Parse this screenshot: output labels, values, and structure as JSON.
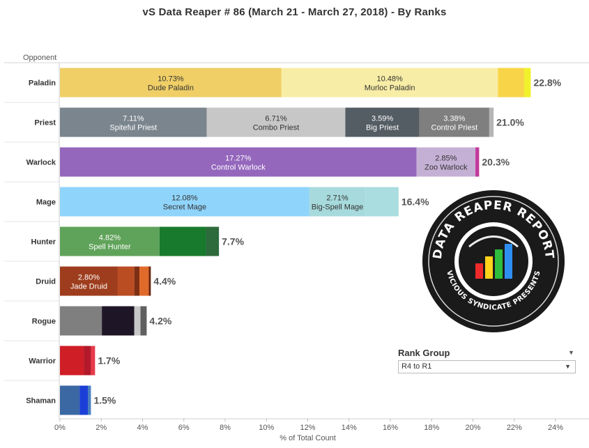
{
  "title": "vS Data Reaper #  86 (March 21 - March 27, 2018) - By Ranks",
  "logo": {
    "top_text": "DATA REAPER REPORT",
    "bottom_text": "VICIOUS SYNDICATE PRESENTS"
  },
  "rank_filter": {
    "title": "Rank Group",
    "value": "R4 to R1"
  },
  "chart_data": {
    "type": "bar",
    "orientation": "horizontal",
    "stacked": true,
    "title": "vS Data Reaper #  86 (March 21 - March 27, 2018) - By Ranks",
    "ylabel": "Opponent",
    "xlabel": "% of Total Count",
    "xlim": [
      0,
      24
    ],
    "x_ticks": [
      "0%",
      "2%",
      "4%",
      "6%",
      "8%",
      "10%",
      "12%",
      "14%",
      "16%",
      "18%",
      "20%",
      "22%",
      "24%"
    ],
    "grid": false,
    "categories": [
      {
        "name": "Paladin",
        "total": "22.8%",
        "segments": [
          {
            "value": 10.73,
            "pct": "10.73%",
            "label": "Dude Paladin",
            "color": "#f0cf67",
            "text_color": "#333333"
          },
          {
            "value": 10.48,
            "pct": "10.48%",
            "label": "Murloc Paladin",
            "color": "#f8eda6",
            "text_color": "#333333"
          },
          {
            "value": 1.27,
            "color": "#f8d548"
          },
          {
            "value": 0.32,
            "color": "#f1f12b"
          }
        ]
      },
      {
        "name": "Priest",
        "total": "21.0%",
        "segments": [
          {
            "value": 7.11,
            "pct": "7.11%",
            "label": "Spiteful Priest",
            "color": "#7b858e",
            "text_color": "#ffffff"
          },
          {
            "value": 6.71,
            "pct": "6.71%",
            "label": "Combo Priest",
            "color": "#c7c7c7",
            "text_color": "#333333"
          },
          {
            "value": 3.59,
            "pct": "3.59%",
            "label": "Big Priest",
            "color": "#545c64",
            "text_color": "#ffffff"
          },
          {
            "value": 3.38,
            "pct": "3.38%",
            "label": "Control Priest",
            "color": "#7f7f7f",
            "text_color": "#ffffff"
          },
          {
            "value": 0.21,
            "color": "#b5b5b5"
          }
        ]
      },
      {
        "name": "Warlock",
        "total": "20.3%",
        "segments": [
          {
            "value": 17.27,
            "pct": "17.27%",
            "label": "Control Warlock",
            "color": "#9467bd",
            "text_color": "#ffffff"
          },
          {
            "value": 2.85,
            "pct": "2.85%",
            "label": "Zoo Warlock",
            "color": "#c5b0d5",
            "text_color": "#333333"
          },
          {
            "value": 0.18,
            "color": "#c2399c"
          }
        ]
      },
      {
        "name": "Mage",
        "total": "16.4%",
        "segments": [
          {
            "value": 12.08,
            "pct": "12.08%",
            "label": "Secret Mage",
            "color": "#8fd4fb",
            "text_color": "#333333"
          },
          {
            "value": 2.71,
            "pct": "2.71%",
            "label": "Big-Spell Mage",
            "color": "#a7dadc",
            "text_color": "#333333"
          },
          {
            "value": 1.61,
            "color": "#a9dde0"
          }
        ]
      },
      {
        "name": "Hunter",
        "total": "7.7%",
        "segments": [
          {
            "value": 4.82,
            "pct": "4.82%",
            "label": "Spell Hunter",
            "color": "#5fa35a",
            "text_color": "#ffffff"
          },
          {
            "value": 2.25,
            "color": "#177a2c"
          },
          {
            "value": 0.63,
            "color": "#2d6a3c"
          }
        ]
      },
      {
        "name": "Druid",
        "total": "4.4%",
        "segments": [
          {
            "value": 2.8,
            "pct": "2.80%",
            "label": "Jade Druid",
            "color": "#9e3d1d",
            "text_color": "#ffffff"
          },
          {
            "value": 0.8,
            "color": "#bb4d23"
          },
          {
            "value": 0.25,
            "color": "#7e2e13"
          },
          {
            "value": 0.45,
            "color": "#e06a2a"
          },
          {
            "value": 0.1,
            "color": "#6b250f"
          }
        ]
      },
      {
        "name": "Rogue",
        "total": "4.2%",
        "segments": [
          {
            "value": 2.03,
            "color": "#7f7f7f"
          },
          {
            "value": 1.57,
            "color": "#1e1526"
          },
          {
            "value": 0.3,
            "color": "#c7c7c7"
          },
          {
            "value": 0.3,
            "color": "#606060"
          }
        ]
      },
      {
        "name": "Warrior",
        "total": "1.7%",
        "segments": [
          {
            "value": 1.15,
            "color": "#d01e27"
          },
          {
            "value": 0.35,
            "color": "#b3192a"
          },
          {
            "value": 0.2,
            "color": "#e63a4a"
          }
        ]
      },
      {
        "name": "Shaman",
        "total": "1.5%",
        "segments": [
          {
            "value": 0.95,
            "color": "#3b68a3"
          },
          {
            "value": 0.4,
            "color": "#1b3fd6"
          },
          {
            "value": 0.15,
            "color": "#4a7fbf"
          }
        ]
      }
    ]
  }
}
